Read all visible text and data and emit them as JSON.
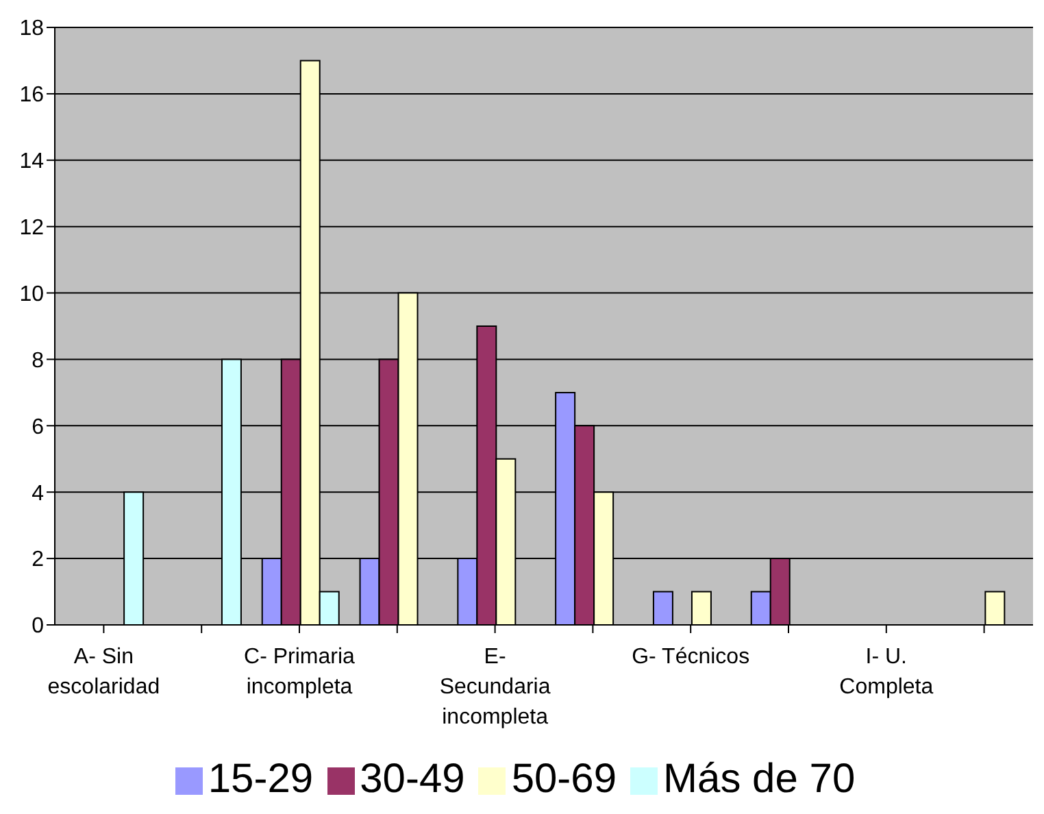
{
  "chart_data": {
    "type": "bar",
    "categories": [
      "A- Sin escolaridad",
      null,
      "C- Primaria incompleta",
      null,
      "E- Secundaria incompleta",
      null,
      "G- Técnicos",
      null,
      "I- U. Completa",
      null
    ],
    "series": [
      {
        "name": "15-29",
        "color": "#9999ff",
        "values": [
          0,
          0,
          2,
          2,
          2,
          7,
          1,
          1,
          0,
          0
        ]
      },
      {
        "name": "30-49",
        "color": "#993366",
        "values": [
          0,
          0,
          8,
          8,
          9,
          6,
          0,
          2,
          0,
          0
        ]
      },
      {
        "name": "50-69",
        "color": "#ffffcc",
        "values": [
          0,
          0,
          17,
          10,
          5,
          4,
          1,
          0,
          0,
          1
        ]
      },
      {
        "name": "Más de 70",
        "color": "#ccffff",
        "values": [
          4,
          8,
          1,
          0,
          0,
          0,
          0,
          0,
          0,
          0
        ]
      }
    ],
    "ylim": [
      0,
      18
    ],
    "yticks": [
      0,
      2,
      4,
      6,
      8,
      10,
      12,
      14,
      16,
      18
    ],
    "grid": "y",
    "legend": "bottom"
  }
}
